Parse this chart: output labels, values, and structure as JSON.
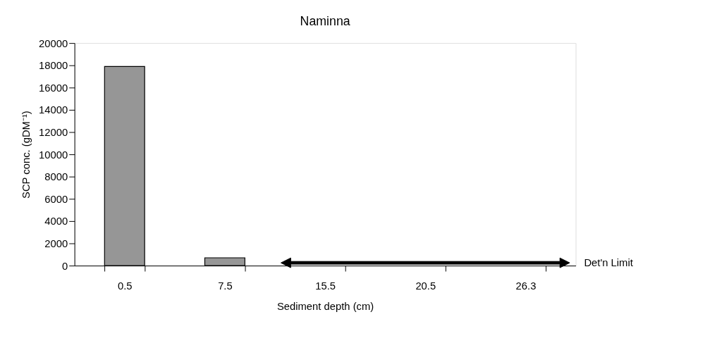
{
  "chart_data": {
    "type": "bar",
    "title": "Naminna",
    "xlabel": "Sediment depth (cm)",
    "ylabel": "SCP conc. (gDM⁻¹)",
    "categories": [
      "0.5",
      "7.5",
      "15.5",
      "20.5",
      "26.3"
    ],
    "values": [
      17900,
      700,
      null,
      null,
      null
    ],
    "color": "#969696",
    "ylim": [
      0,
      20000
    ],
    "yticks": [
      0,
      2000,
      4000,
      6000,
      8000,
      10000,
      12000,
      14000,
      16000,
      18000,
      20000
    ],
    "ref_lines": [
      {
        "axis": "y",
        "value": 250,
        "label": "Det'n Limit"
      }
    ],
    "grid": false
  }
}
